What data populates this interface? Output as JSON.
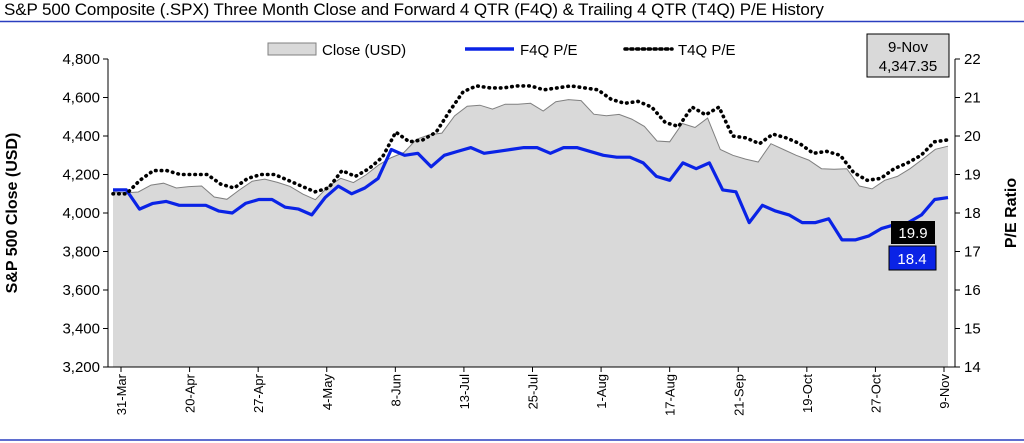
{
  "header": {
    "title": "S&P 500 Composite (.SPX) Three Month Close and Forward 4 QTR (F4Q) & Trailing 4 QTR (T4Q) P/E History"
  },
  "chart_data": {
    "type": "line",
    "title": "S&P 500 Composite (.SPX) Three Month Close and Forward 4 QTR (F4Q) & Trailing 4 QTR (T4Q) P/E History",
    "ylabel": "S&P 500 Close (USD)",
    "y2label": "P/E Ratio",
    "ylim": [
      3200,
      4800
    ],
    "y_ticks": [
      "3,200",
      "3,400",
      "3,600",
      "3,800",
      "4,000",
      "4,200",
      "4,400",
      "4,600",
      "4,800"
    ],
    "y2lim": [
      14,
      22
    ],
    "y2_ticks": [
      "14",
      "15",
      "16",
      "17",
      "18",
      "19",
      "20",
      "21",
      "22"
    ],
    "x_tick_labels": [
      "31-Mar",
      "20-Apr",
      "27-Apr",
      "4-May",
      "8-Jun",
      "13-Jul",
      "25-Jul",
      "1-Aug",
      "17-Aug",
      "21-Sep",
      "19-Oct",
      "27-Oct",
      "9-Nov"
    ],
    "legend": {
      "position": "top",
      "entries": [
        "Close (USD)",
        "F4Q P/E",
        "T4Q P/E"
      ]
    },
    "colors": {
      "close_fill": "#d9d9d9",
      "close_stroke": "#808080",
      "f4q": "#0a23e6",
      "t4q": "#000000",
      "callout_box": "#d9d9d9",
      "t4q_label_bg": "#000000",
      "f4q_label_bg": "#0a23e6"
    },
    "series": [
      {
        "name": "Close (USD)",
        "axis": "left",
        "style": "area",
        "values": [
          4109,
          4105,
          4109,
          4145,
          4155,
          4130,
          4137,
          4140,
          4083,
          4071,
          4120,
          4165,
          4176,
          4159,
          4138,
          4098,
          4069,
          4137,
          4180,
          4158,
          4198,
          4250,
          4288,
          4315,
          4383,
          4406,
          4415,
          4505,
          4555,
          4560,
          4540,
          4565,
          4565,
          4570,
          4530,
          4578,
          4589,
          4584,
          4513,
          4505,
          4512,
          4488,
          4450,
          4374,
          4370,
          4465,
          4444,
          4493,
          4330,
          4300,
          4280,
          4265,
          4360,
          4330,
          4300,
          4275,
          4230,
          4227,
          4230,
          4140,
          4125,
          4170,
          4190,
          4230,
          4280,
          4331,
          4347
        ]
      },
      {
        "name": "F4Q P/E",
        "axis": "right",
        "style": "line",
        "values": [
          18.6,
          18.6,
          18.1,
          18.25,
          18.3,
          18.2,
          18.2,
          18.2,
          18.05,
          18.0,
          18.25,
          18.35,
          18.35,
          18.15,
          18.1,
          17.95,
          18.4,
          18.7,
          18.5,
          18.65,
          18.9,
          19.65,
          19.5,
          19.55,
          19.2,
          19.5,
          19.6,
          19.7,
          19.55,
          19.6,
          19.65,
          19.7,
          19.7,
          19.55,
          19.7,
          19.7,
          19.6,
          19.5,
          19.45,
          19.45,
          19.3,
          18.95,
          18.85,
          19.3,
          19.15,
          19.3,
          18.6,
          18.55,
          17.75,
          18.2,
          18.05,
          17.95,
          17.75,
          17.75,
          17.85,
          17.3,
          17.3,
          17.4,
          17.6,
          17.7,
          17.75,
          17.95,
          18.35,
          18.4
        ]
      },
      {
        "name": "T4Q P/E",
        "axis": "right",
        "style": "dotted",
        "values": [
          18.5,
          18.5,
          18.85,
          19.1,
          19.1,
          19.0,
          19.0,
          19.0,
          18.75,
          18.65,
          18.9,
          19.0,
          19.0,
          18.85,
          18.7,
          18.55,
          18.65,
          19.1,
          18.95,
          19.15,
          19.45,
          20.1,
          19.85,
          19.9,
          20.1,
          20.65,
          21.15,
          21.3,
          21.25,
          21.25,
          21.3,
          21.3,
          21.2,
          21.25,
          21.3,
          21.25,
          21.2,
          20.95,
          20.85,
          20.9,
          20.75,
          20.35,
          20.25,
          20.75,
          20.55,
          20.75,
          20.0,
          19.95,
          19.8,
          20.05,
          19.95,
          19.8,
          19.55,
          19.6,
          19.5,
          19.05,
          18.85,
          18.9,
          19.15,
          19.3,
          19.5,
          19.85,
          19.9
        ]
      }
    ],
    "callout": {
      "date": "9-Nov",
      "close": "4,347.35",
      "t4q": "19.9",
      "f4q": "18.4"
    }
  }
}
